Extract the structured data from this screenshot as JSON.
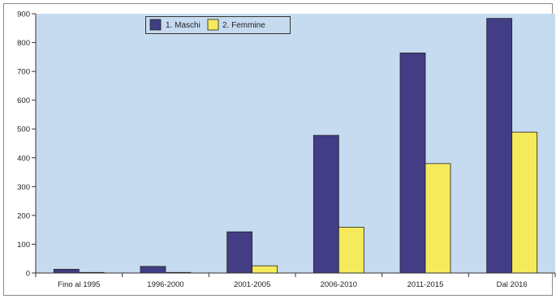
{
  "chart_data": {
    "type": "bar",
    "categories": [
      "Fino al 1995",
      "1996-2000",
      "2001-2005",
      "2006-2010",
      "2011-2015",
      "Dal 2016"
    ],
    "series": [
      {
        "name": "1. Maschi",
        "values": [
          13,
          23,
          143,
          478,
          764,
          884
        ],
        "color": "#433d86"
      },
      {
        "name": "2. Femmine",
        "values": [
          2,
          2,
          25,
          159,
          380,
          489
        ],
        "color": "#f5ea5b"
      }
    ],
    "ylim": [
      0,
      900
    ],
    "yticks": [
      0,
      100,
      200,
      300,
      400,
      500,
      600,
      700,
      800,
      900
    ],
    "grid": false,
    "legend": "top-left",
    "colors": {
      "plot_background": "#c6dbef",
      "frame": "#555555"
    }
  }
}
